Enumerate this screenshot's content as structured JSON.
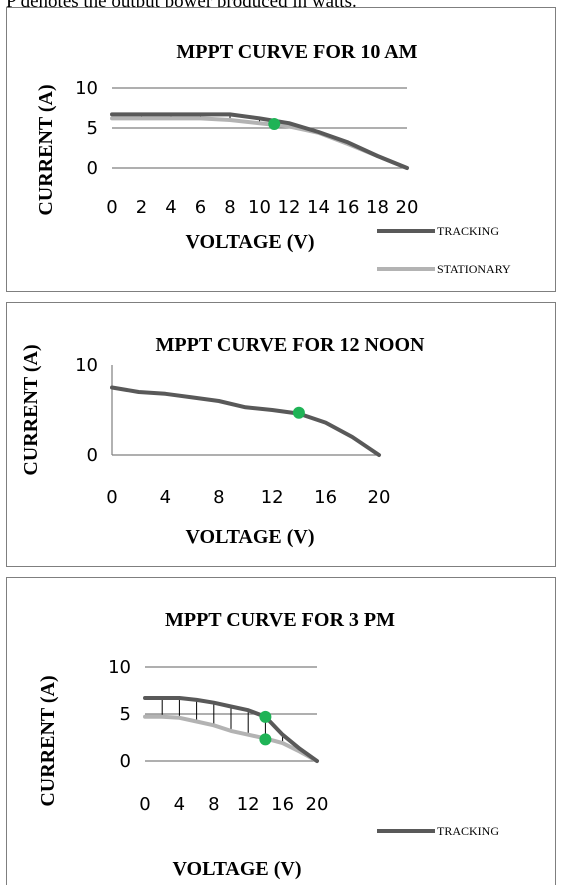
{
  "header_text": "P  denotes the output power produced in watts.",
  "colors": {
    "tracking": "#595959",
    "stationary": "#b3b3b3",
    "mpp": "#1fb356",
    "grid": "#7f7f7f"
  },
  "chart_data": [
    {
      "type": "line",
      "title": "MPPT CURVE  FOR 10 AM",
      "xlabel": "VOLTAGE (V)",
      "ylabel": "CURRENT (A)",
      "x_ticks": [
        "0",
        "2",
        "4",
        "6",
        "8",
        "10",
        "12",
        "14",
        "16",
        "18",
        "20"
      ],
      "y_ticks": [
        "0",
        "5",
        "10"
      ],
      "xlim": [
        0,
        20
      ],
      "ylim": [
        0,
        10
      ],
      "grid": "horizontal",
      "legend_position": "bottom-right",
      "series": [
        {
          "name": "TRACKING",
          "x": [
            0,
            2,
            4,
            6,
            8,
            10,
            12,
            14,
            16,
            18,
            20
          ],
          "values": [
            6.7,
            6.7,
            6.7,
            6.7,
            6.7,
            6.2,
            5.6,
            4.5,
            3.2,
            1.5,
            0
          ]
        },
        {
          "name": "STATIONARY",
          "x": [
            0,
            2,
            4,
            6,
            8,
            10,
            12,
            14,
            16,
            18,
            20
          ],
          "values": [
            6.2,
            6.2,
            6.2,
            6.2,
            6.0,
            5.6,
            5.2,
            4.4,
            3.0,
            1.5,
            0
          ]
        }
      ],
      "mpp_points": [
        {
          "x": 11,
          "y": 5.5
        }
      ],
      "difference_markers": true
    },
    {
      "type": "line",
      "title": "MPPT CURVE  FOR 12 NOON",
      "xlabel": "VOLTAGE (V)",
      "ylabel": "CURRENT (A)",
      "x_ticks": [
        "0",
        "4",
        "8",
        "12",
        "16",
        "20"
      ],
      "y_ticks": [
        "0",
        "10"
      ],
      "xlim": [
        0,
        20
      ],
      "ylim": [
        0,
        10
      ],
      "grid": "none",
      "series": [
        {
          "x": [
            0,
            2,
            4,
            6,
            8,
            10,
            12,
            14,
            16,
            18,
            20
          ],
          "values": [
            7.5,
            7.0,
            6.8,
            6.4,
            6.0,
            5.3,
            5.0,
            4.6,
            3.6,
            2.0,
            0
          ]
        }
      ],
      "mpp_points": [
        {
          "x": 14,
          "y": 4.7
        }
      ]
    },
    {
      "type": "line",
      "title": "MPPT CURVE  FOR 3 PM",
      "xlabel": "VOLTAGE (V)",
      "ylabel": "CURRENT (A)",
      "x_ticks": [
        "0",
        "4",
        "8",
        "12",
        "16",
        "20"
      ],
      "y_ticks": [
        "0",
        "5",
        "10"
      ],
      "xlim": [
        0,
        20
      ],
      "ylim": [
        0,
        10
      ],
      "grid": "horizontal",
      "legend_position": "bottom-right",
      "series": [
        {
          "name": "TRACKING",
          "x": [
            0,
            2,
            4,
            6,
            8,
            10,
            12,
            14,
            16,
            18,
            20
          ],
          "values": [
            6.7,
            6.7,
            6.7,
            6.5,
            6.2,
            5.8,
            5.4,
            4.7,
            2.8,
            1.3,
            0
          ]
        },
        {
          "name": "",
          "x": [
            0,
            2,
            4,
            6,
            8,
            10,
            12,
            14,
            16,
            18,
            20
          ],
          "values": [
            4.7,
            4.7,
            4.6,
            4.2,
            3.8,
            3.2,
            2.8,
            2.4,
            1.9,
            1.0,
            0
          ]
        }
      ],
      "mpp_points": [
        {
          "x": 14,
          "y": 4.7
        },
        {
          "x": 14,
          "y": 2.3
        }
      ],
      "difference_markers": true
    }
  ]
}
